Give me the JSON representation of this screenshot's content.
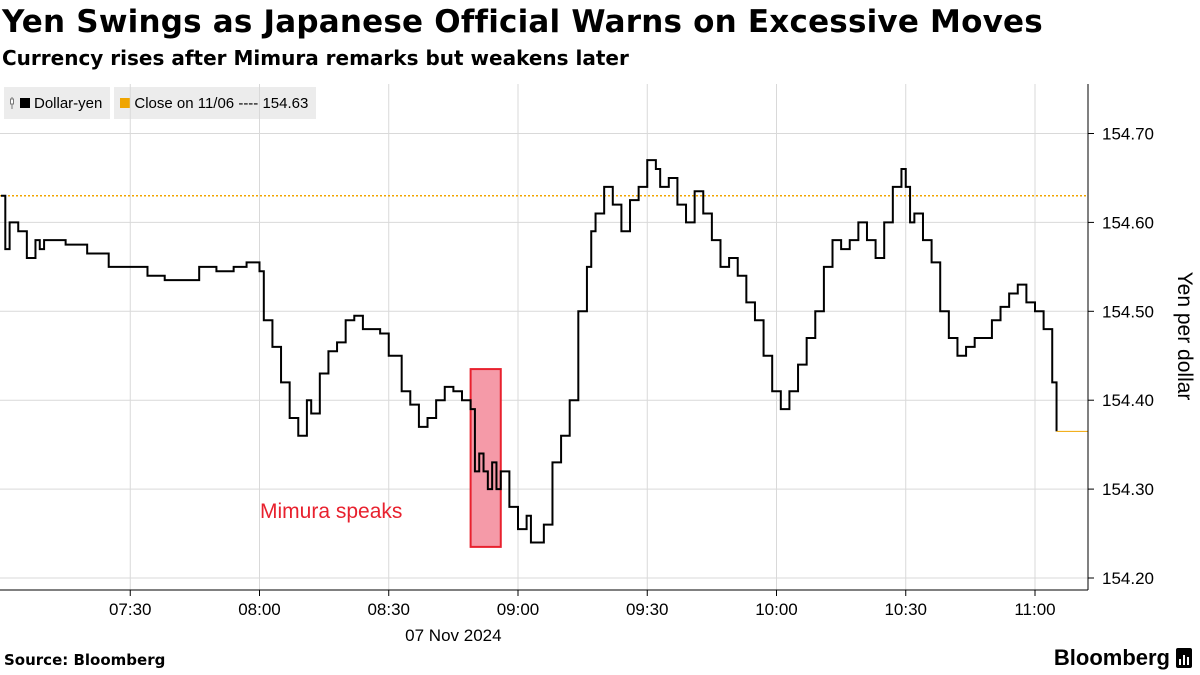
{
  "header": {
    "title": "Yen Swings as Japanese Official Warns on Excessive Moves",
    "subtitle": "Currency rises after Mimura remarks but weakens later"
  },
  "legend": {
    "series_label": "Dollar-yen",
    "reference_label": "Close on 11/06 ---- 154.63"
  },
  "annotation": {
    "text": "Mimura speaks",
    "color": "#e8212e",
    "fill": "#f59aa8"
  },
  "footer": {
    "source": "Source: Bloomberg",
    "brand": "Bloomberg"
  },
  "colors": {
    "series": "#000000",
    "reference": "#f0a500",
    "grid": "#d9d9d9",
    "axis": "#000000"
  },
  "chart_data": {
    "type": "line",
    "title": "Yen Swings as Japanese Official Warns on Excessive Moves",
    "subtitle": "Currency rises after Mimura remarks but weakens later",
    "date_label": "07 Nov 2024",
    "ylabel": "Yen per dollar",
    "xlabel": "",
    "x_range_minutes": [
      "07:00",
      "11:15"
    ],
    "ylim": [
      154.18,
      154.76
    ],
    "y_ticks": [
      154.2,
      154.3,
      154.4,
      154.5,
      154.6,
      154.7
    ],
    "y_tick_labels": [
      "154.20",
      "154.30",
      "154.40",
      "154.50",
      "154.60",
      "154.70"
    ],
    "x_ticks": [
      "07:30",
      "08:00",
      "08:30",
      "09:00",
      "09:30",
      "10:00",
      "10:30",
      "11:00"
    ],
    "grid": true,
    "axis_side": "right",
    "reference_line": {
      "name": "Close on 11/06",
      "value": 154.63
    },
    "last_value": 154.365,
    "highlight_window": {
      "label": "Mimura speaks",
      "from": "08:49",
      "to": "08:56",
      "y_from": 154.235,
      "y_to": 154.435
    },
    "series": [
      {
        "name": "Dollar-yen",
        "x": [
          "07:00",
          "07:01",
          "07:02",
          "07:04",
          "07:06",
          "07:08",
          "07:09",
          "07:10",
          "07:12",
          "07:15",
          "07:20",
          "07:25",
          "07:30",
          "07:34",
          "07:38",
          "07:42",
          "07:46",
          "07:50",
          "07:54",
          "07:57",
          "08:00",
          "08:01",
          "08:03",
          "08:05",
          "08:07",
          "08:09",
          "08:11",
          "08:12",
          "08:14",
          "08:16",
          "08:18",
          "08:20",
          "08:22",
          "08:24",
          "08:26",
          "08:28",
          "08:30",
          "08:33",
          "08:35",
          "08:37",
          "08:39",
          "08:41",
          "08:43",
          "08:45",
          "08:47",
          "08:49",
          "08:50",
          "08:51",
          "08:52",
          "08:53",
          "08:54",
          "08:55",
          "08:56",
          "08:58",
          "09:00",
          "09:02",
          "09:03",
          "09:04",
          "09:06",
          "09:08",
          "09:10",
          "09:12",
          "09:14",
          "09:16",
          "09:17",
          "09:18",
          "09:20",
          "09:22",
          "09:24",
          "09:26",
          "09:28",
          "09:30",
          "09:32",
          "09:33",
          "09:35",
          "09:37",
          "09:39",
          "09:41",
          "09:43",
          "09:45",
          "09:47",
          "09:49",
          "09:51",
          "09:53",
          "09:55",
          "09:57",
          "09:59",
          "10:01",
          "10:03",
          "10:05",
          "10:07",
          "10:09",
          "10:11",
          "10:13",
          "10:15",
          "10:17",
          "10:19",
          "10:21",
          "10:23",
          "10:25",
          "10:27",
          "10:29",
          "10:30",
          "10:31",
          "10:32",
          "10:34",
          "10:36",
          "10:38",
          "10:40",
          "10:42",
          "10:44",
          "10:46",
          "10:48",
          "10:50",
          "10:52",
          "10:54",
          "10:56",
          "10:58",
          "11:00",
          "11:02",
          "11:04",
          "11:05"
        ],
        "values": [
          154.63,
          154.57,
          154.6,
          154.59,
          154.56,
          154.58,
          154.57,
          154.58,
          154.58,
          154.575,
          154.565,
          154.55,
          154.55,
          154.54,
          154.535,
          154.535,
          154.55,
          154.545,
          154.55,
          154.555,
          154.545,
          154.49,
          154.46,
          154.42,
          154.38,
          154.36,
          154.4,
          154.385,
          154.43,
          154.455,
          154.465,
          154.49,
          154.495,
          154.48,
          154.48,
          154.475,
          154.45,
          154.41,
          154.395,
          154.37,
          154.38,
          154.4,
          154.415,
          154.41,
          154.4,
          154.39,
          154.32,
          154.34,
          154.32,
          154.3,
          154.33,
          154.3,
          154.32,
          154.28,
          154.255,
          154.27,
          154.24,
          154.24,
          154.26,
          154.33,
          154.36,
          154.4,
          154.5,
          154.55,
          154.59,
          154.61,
          154.64,
          154.62,
          154.59,
          154.625,
          154.64,
          154.67,
          154.66,
          154.64,
          154.65,
          154.62,
          154.6,
          154.635,
          154.61,
          154.58,
          154.55,
          154.56,
          154.54,
          154.51,
          154.49,
          154.45,
          154.41,
          154.39,
          154.41,
          154.44,
          154.47,
          154.5,
          154.55,
          154.58,
          154.57,
          154.58,
          154.6,
          154.58,
          154.56,
          154.6,
          154.64,
          154.66,
          154.64,
          154.6,
          154.61,
          154.58,
          154.555,
          154.5,
          154.47,
          154.45,
          154.46,
          154.47,
          154.47,
          154.49,
          154.505,
          154.52,
          154.53,
          154.51,
          154.5,
          154.48,
          154.42,
          154.365
        ]
      }
    ]
  }
}
